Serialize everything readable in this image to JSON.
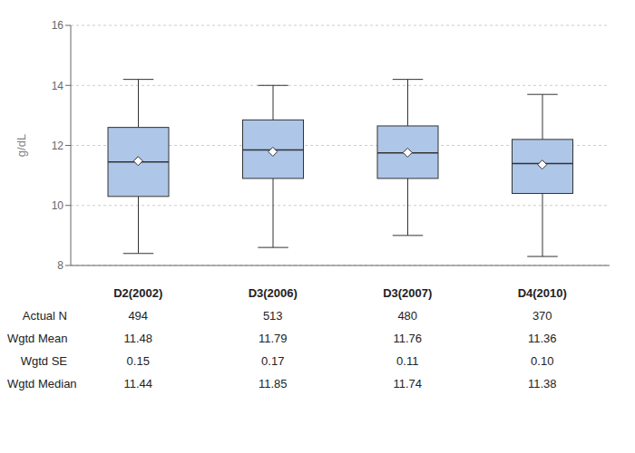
{
  "chart_data": {
    "type": "box",
    "ylabel": "g/dL",
    "categories": [
      "D2(2002)",
      "D3(2006)",
      "D3(2007)",
      "D4(2010)"
    ],
    "boxes": [
      {
        "whisker_low": 8.4,
        "q1": 10.3,
        "median": 11.45,
        "q3": 12.6,
        "whisker_high": 14.2,
        "mean": 11.48
      },
      {
        "whisker_low": 8.6,
        "q1": 10.9,
        "median": 11.85,
        "q3": 12.85,
        "whisker_high": 14.0,
        "mean": 11.79
      },
      {
        "whisker_low": 9.0,
        "q1": 10.9,
        "median": 11.75,
        "q3": 12.65,
        "whisker_high": 14.2,
        "mean": 11.76
      },
      {
        "whisker_low": 8.3,
        "q1": 10.4,
        "median": 11.4,
        "q3": 12.2,
        "whisker_high": 13.7,
        "mean": 11.36
      }
    ],
    "color": "#aec6e8",
    "edge_color": "#333333",
    "mean_color": "white",
    "marker": "diamond",
    "ylim": [
      8,
      16
    ],
    "yticks": [
      8,
      10,
      12,
      14,
      16
    ],
    "grid": true,
    "tick_labels": "y",
    "table": {
      "rows": [
        {
          "label": "Actual N",
          "values": [
            "494",
            "513",
            "480",
            "370"
          ]
        },
        {
          "label": "Wgtd Mean",
          "values": [
            "11.48",
            "11.79",
            "11.76",
            "11.36"
          ]
        },
        {
          "label": "Wgtd SE",
          "values": [
            "0.15",
            "0.17",
            "0.11",
            "0.10"
          ]
        },
        {
          "label": "Wgtd Median",
          "values": [
            "11.44",
            "11.85",
            "11.74",
            "11.38"
          ]
        }
      ]
    }
  }
}
